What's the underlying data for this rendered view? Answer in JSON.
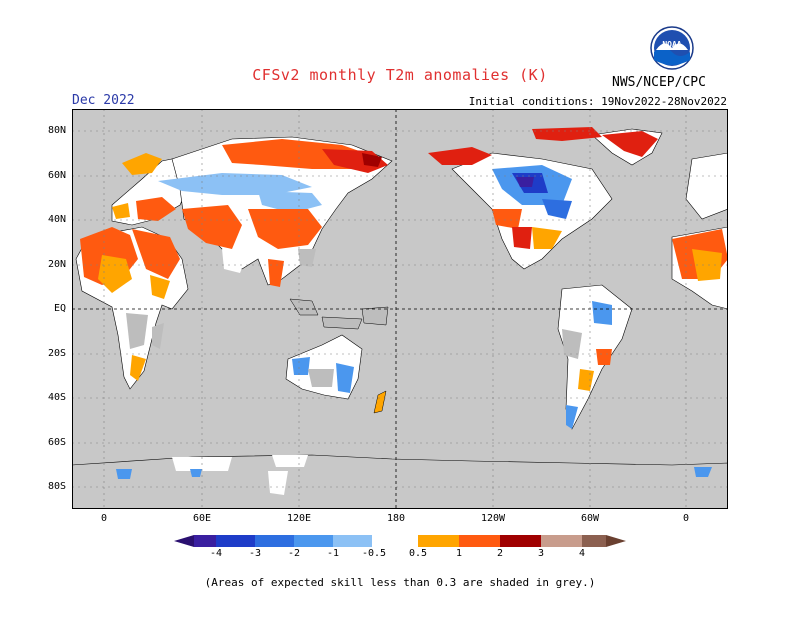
{
  "header": {
    "title": "CFSv2 monthly T2m anomalies (K)",
    "month": "Dec 2022",
    "initial_conditions": "Initial conditions: 19Nov2022-28Nov2022",
    "agency": "NWS/NCEP/CPC",
    "logo_text": "NOAA"
  },
  "map": {
    "lat_labels": [
      "80N",
      "60N",
      "40N",
      "20N",
      "EQ",
      "20S",
      "40S",
      "60S",
      "80S"
    ],
    "lon_labels": [
      "0",
      "60E",
      "120E",
      "180",
      "120W",
      "60W",
      "0"
    ],
    "colors": {
      "ocean_grey": "#c8c8c8",
      "neutral": "#ffffff",
      "grey_skill": "#bdbdbd"
    }
  },
  "colorbar": {
    "labels": [
      "-4",
      "-3",
      "-2",
      "-1",
      "-0.5",
      "0.5",
      "1",
      "2",
      "3",
      "4"
    ],
    "colors": [
      "#3a1fa0",
      "#1e3cc8",
      "#2d6ee0",
      "#4b97ee",
      "#8cc1f5",
      "#ffffff",
      "#ffa500",
      "#ff5a10",
      "#e02010",
      "#a00000",
      "#c89c8c",
      "#8c6050"
    ]
  },
  "footnote": "(Areas of expected skill less than 0.3 are shaded in grey.)"
}
